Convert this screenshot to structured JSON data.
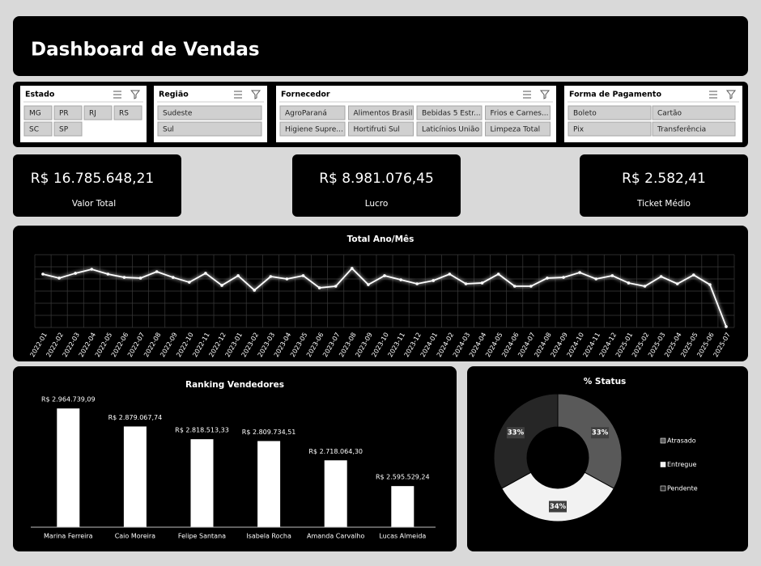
{
  "header": {
    "title": "Dashboard de Vendas"
  },
  "slicers": [
    {
      "title": "Estado",
      "items": [
        "MG",
        "PR",
        "RJ",
        "RS",
        "SC",
        "SP"
      ]
    },
    {
      "title": "Região",
      "items": [
        "Sudeste",
        "Sul"
      ]
    },
    {
      "title": "Fornecedor",
      "items": [
        "AgroParaná",
        "Alimentos Brasil",
        "Bebidas 5 Estr...",
        "Frios e Carnes...",
        "Higiene Supre...",
        "Hortifruti Sul",
        "Laticínios União",
        "Limpeza Total"
      ]
    },
    {
      "title": "Forma de Pagamento",
      "items": [
        "Boleto",
        "Cartão",
        "Pix",
        "Transferência"
      ]
    }
  ],
  "kpis": [
    {
      "value": "R$ 16.785.648,21",
      "label": "Valor Total"
    },
    {
      "value": "R$ 8.981.076,45",
      "label": "Lucro"
    },
    {
      "value": "R$ 2.582,41",
      "label": "Ticket Médio"
    }
  ],
  "chart_data": [
    {
      "type": "line",
      "title": "Total Ano/Mês",
      "color": "#ffffff",
      "grid": true,
      "categories": [
        "2022-01",
        "2022-02",
        "2022-03",
        "2022-04",
        "2022-05",
        "2022-06",
        "2022-07",
        "2022-08",
        "2022-09",
        "2022-10",
        "2022-11",
        "2022-12",
        "2023-01",
        "2023-02",
        "2023-03",
        "2023-04",
        "2023-05",
        "2023-06",
        "2023-07",
        "2023-08",
        "2023-09",
        "2023-10",
        "2023-11",
        "2023-12",
        "2024-01",
        "2024-02",
        "2024-03",
        "2024-04",
        "2024-05",
        "2024-06",
        "2024-07",
        "2024-08",
        "2024-09",
        "2024-10",
        "2024-11",
        "2024-12",
        "2025-01",
        "2025-02",
        "2025-03",
        "2025-04",
        "2025-05",
        "2025-06",
        "2025-07"
      ],
      "values": [
        440000,
        407000,
        447000,
        480000,
        440000,
        413000,
        407000,
        460000,
        413000,
        373000,
        447000,
        347000,
        427000,
        307000,
        420000,
        400000,
        427000,
        327000,
        340000,
        487000,
        353000,
        427000,
        393000,
        360000,
        387000,
        440000,
        360000,
        367000,
        440000,
        340000,
        340000,
        407000,
        413000,
        453000,
        400000,
        427000,
        367000,
        340000,
        420000,
        360000,
        433000,
        353000,
        7000
      ],
      "ylim": [
        0,
        600000
      ]
    },
    {
      "type": "bar",
      "title": "Ranking Vendedores",
      "color": "#ffffff",
      "categories": [
        "Marina Ferreira",
        "Caio Moreira",
        "Felipe Santana",
        "Isabela Rocha",
        "Amanda Carvalho",
        "Lucas Almeida"
      ],
      "values": [
        2964739.09,
        2879067.74,
        2818513.33,
        2809734.51,
        2718064.3,
        2595529.24
      ],
      "value_labels": [
        "R$ 2.964.739,09",
        "R$ 2.879.067,74",
        "R$ 2.818.513,33",
        "R$ 2.809.734,51",
        "R$ 2.718.064,30",
        "R$ 2.595.529,24"
      ],
      "ylim": [
        2400000,
        3000000
      ]
    },
    {
      "type": "pie",
      "title": "% Status",
      "donut": true,
      "categories": [
        "Atrasado",
        "Entregue",
        "Pendente"
      ],
      "values": [
        33,
        34,
        33
      ],
      "value_labels": [
        "33%",
        "34%",
        "33%"
      ],
      "colors": [
        "#595959",
        "#f2f2f2",
        "#262626"
      ]
    }
  ]
}
